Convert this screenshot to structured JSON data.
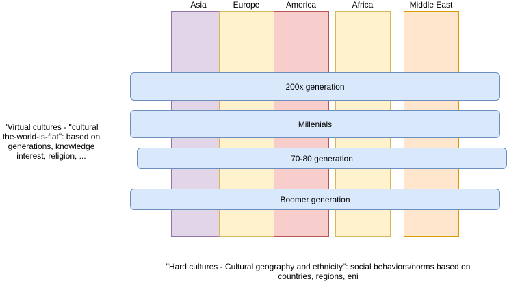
{
  "columns": [
    {
      "label": "Asia",
      "fill": "#e1d5e7",
      "stroke": "#9673a6"
    },
    {
      "label": "Europe",
      "fill": "#fff2cc",
      "stroke": "#d6b656"
    },
    {
      "label": "America",
      "fill": "#f8cecc",
      "stroke": "#b85450"
    },
    {
      "label": "Africa",
      "fill": "#fff2cc",
      "stroke": "#d6b656"
    },
    {
      "label": "Middle East",
      "fill": "#ffe6cc",
      "stroke": "#d79b00"
    }
  ],
  "bands": [
    {
      "label": "200x generation"
    },
    {
      "label": "Millenials"
    },
    {
      "label": "70-80 generation"
    },
    {
      "label": "Boomer generation"
    }
  ],
  "notes": {
    "virtual": "\"Virtual cultures - \"cultural the-world-is-flat\": based on generations, knowledge interest, religion, ...",
    "hard": "\"Hard cultures - Cultural geography and ethnicity\": social behaviors/norms based on countries, regions, eni"
  },
  "colors": {
    "band_fill": "#dae8fc",
    "band_stroke": "#6c8ebf"
  }
}
